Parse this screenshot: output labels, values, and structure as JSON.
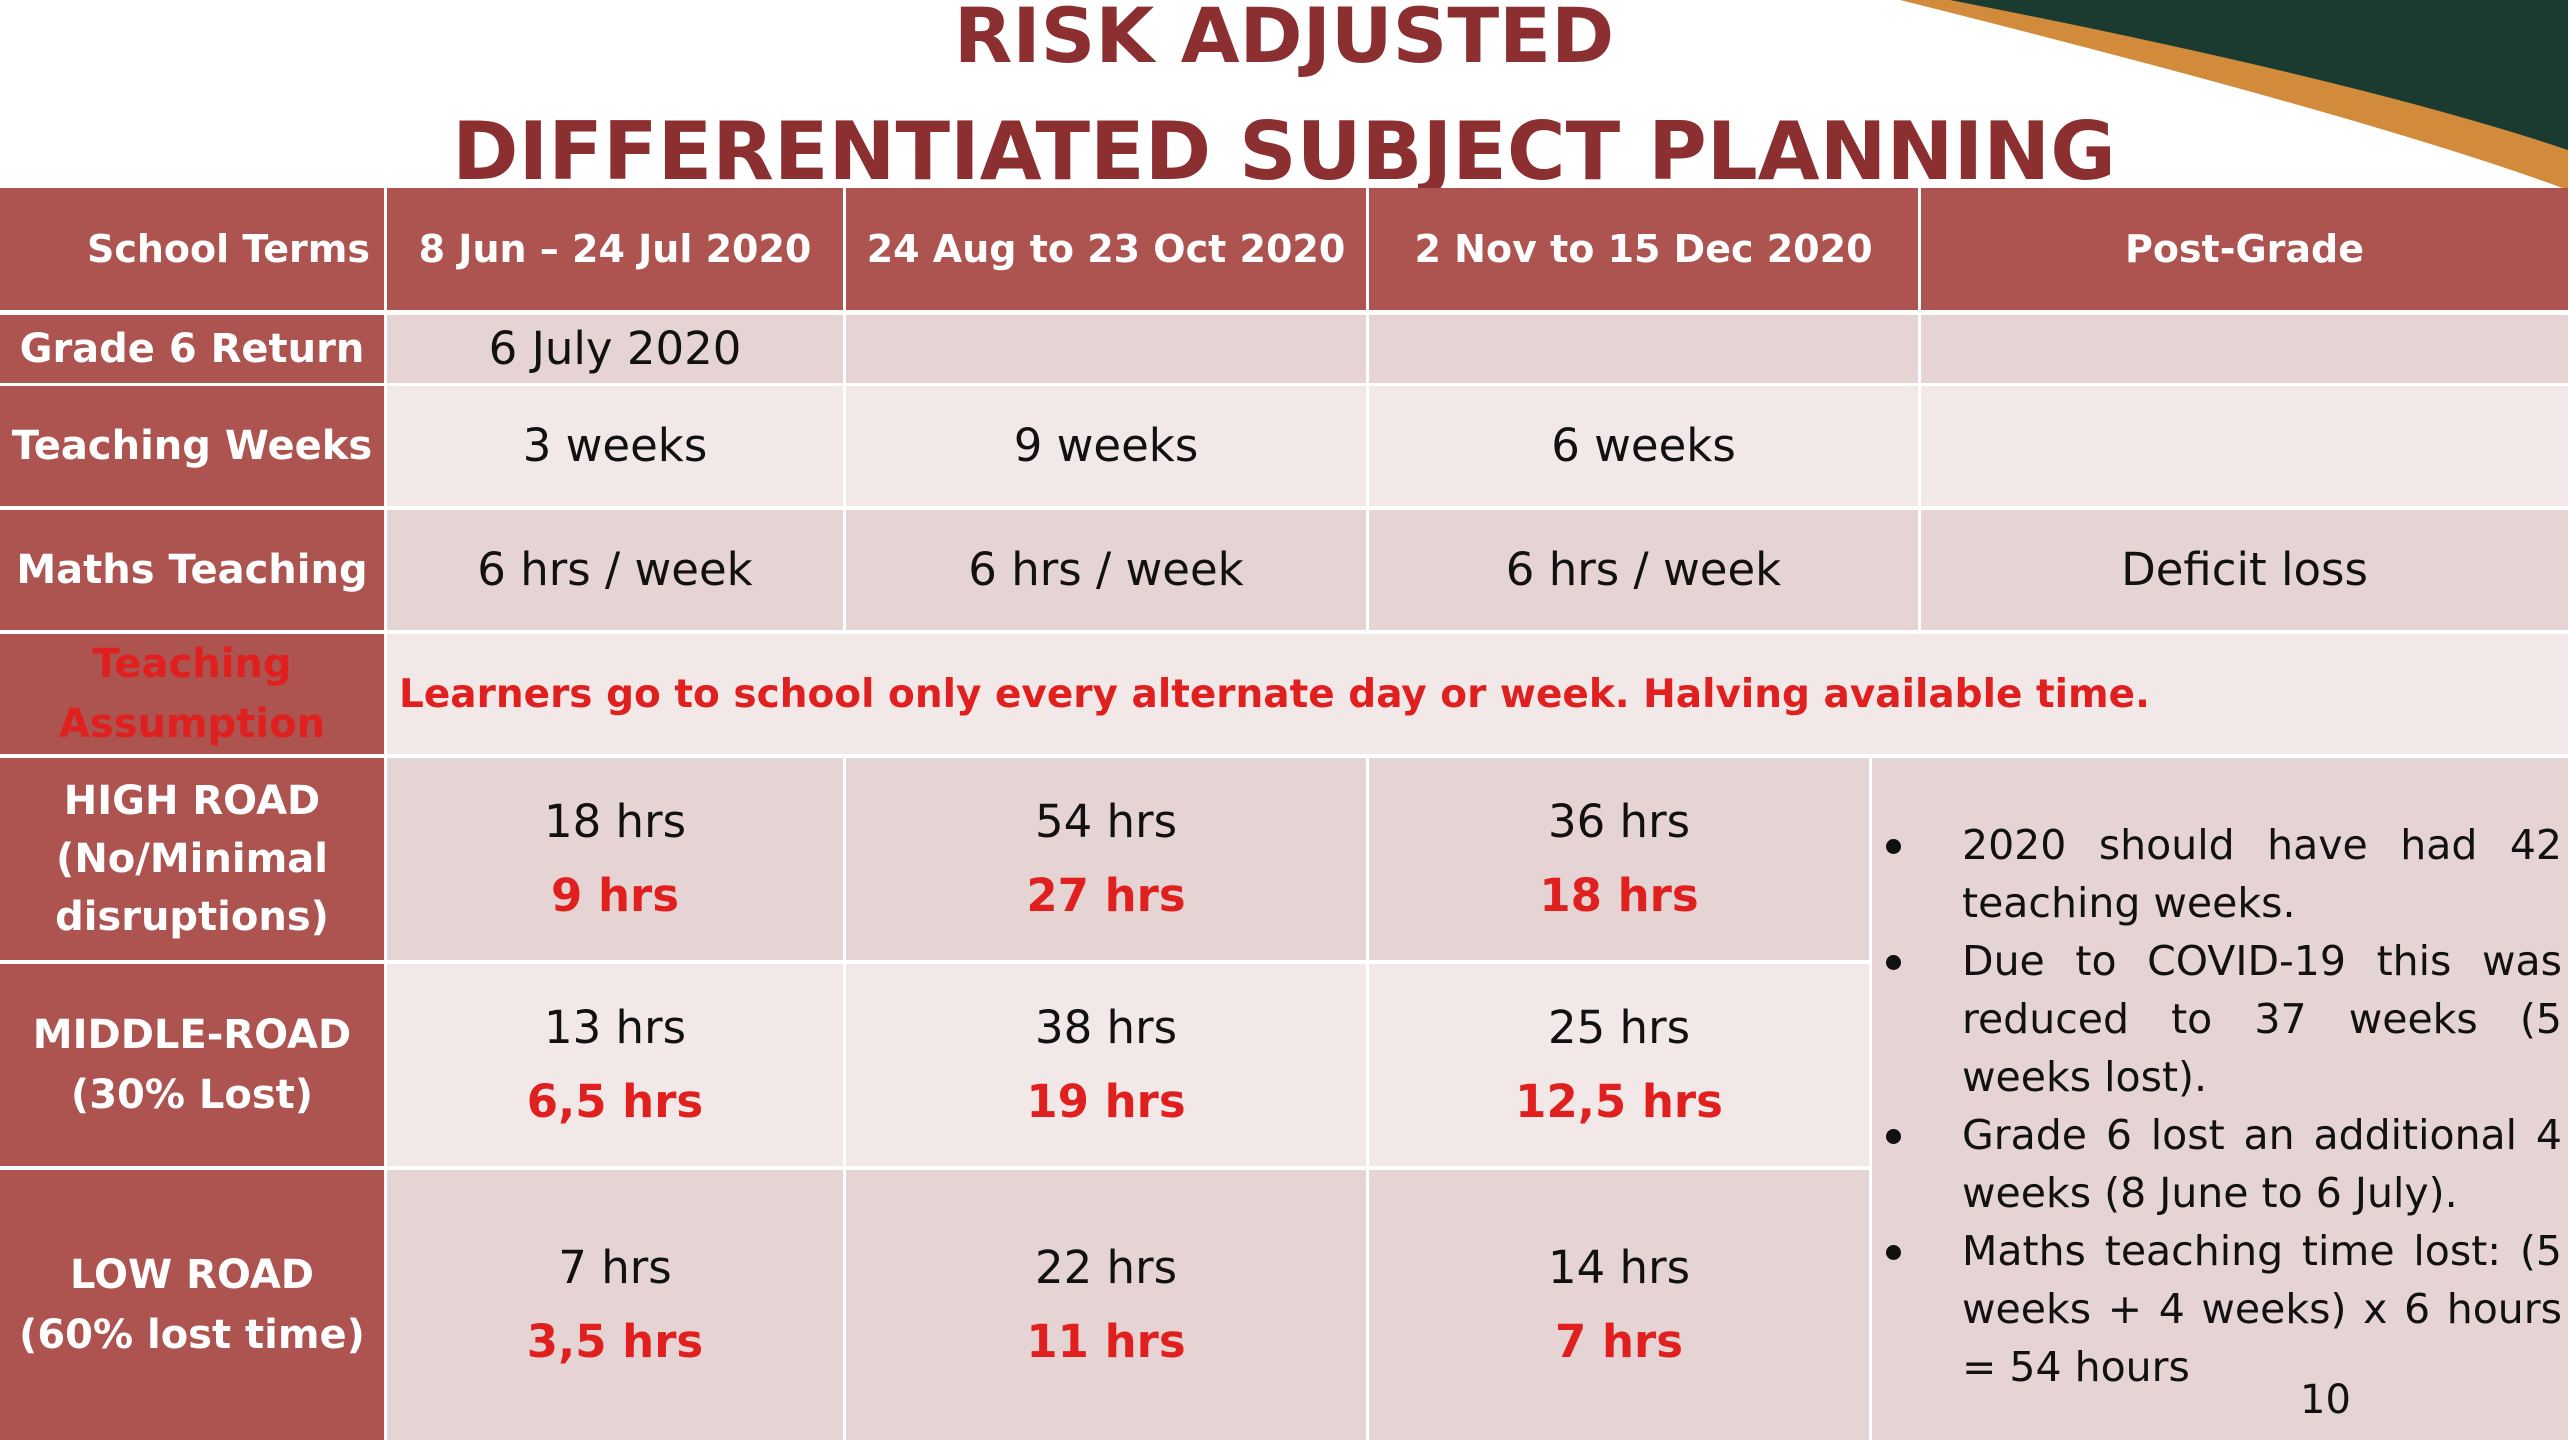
{
  "title": {
    "line1": "RISK ADJUSTED",
    "line2": "DIFFERENTIATED SUBJECT PLANNING"
  },
  "colors": {
    "title": "#8c2f31",
    "header_bg": "#ad5350",
    "cell_dark": "#e6d3d3",
    "cell_light": "#f2e8e8",
    "red_text": "#e0201e",
    "deco_green": "#1b3a30",
    "deco_orange": "#d28b3a"
  },
  "table": {
    "headers": [
      "School Terms",
      "8 Jun – 24 Jul 2020",
      "24 Aug to 23 Oct 2020",
      "2 Nov to 15 Dec 2020",
      "Post-Grade"
    ],
    "grade6_return": {
      "label": "Grade 6 Return",
      "values": [
        "6 July 2020",
        "",
        "",
        ""
      ]
    },
    "teaching_weeks": {
      "label": "Teaching Weeks",
      "values": [
        "3 weeks",
        "9 weeks",
        "6 weeks",
        ""
      ]
    },
    "maths_teaching": {
      "label": "Maths Teaching",
      "values": [
        "6 hrs / week",
        "6 hrs / week",
        "6 hrs / week",
        "Deficit loss"
      ]
    },
    "assumption": {
      "label_line1": "Teaching",
      "label_line2": "Assumption",
      "text": "Learners go to school only every alternate day or week. Halving available time."
    },
    "high_road": {
      "label_line1": "HIGH ROAD",
      "label_line2": "(No/Minimal",
      "label_line3": "disruptions)",
      "hours": [
        "18 hrs",
        "54 hrs",
        "36 hrs"
      ],
      "halved": [
        "9 hrs",
        "27 hrs",
        "18 hrs"
      ]
    },
    "middle_road": {
      "label_line1": "MIDDLE-ROAD",
      "label_line2": "(30% Lost)",
      "hours": [
        "13 hrs",
        "38 hrs",
        "25 hrs"
      ],
      "halved": [
        "6,5 hrs",
        "19 hrs",
        "12,5 hrs"
      ]
    },
    "low_road": {
      "label_line1": "LOW ROAD",
      "label_line2": "(60% lost time)",
      "hours": [
        "7 hrs",
        "22 hrs",
        "14 hrs"
      ],
      "halved": [
        "3,5 hrs",
        "11 hrs",
        "7 hrs"
      ]
    }
  },
  "notes": [
    "2020 should have had 42 teaching weeks.",
    "Due to COVID-19 this was reduced to 37 weeks (5 weeks lost).",
    "Grade 6 lost an additional 4 weeks (8 June to 6 July).",
    "Maths teaching time lost: (5 weeks + 4 weeks) x 6 hours = 54 hours"
  ],
  "page_number": "10"
}
